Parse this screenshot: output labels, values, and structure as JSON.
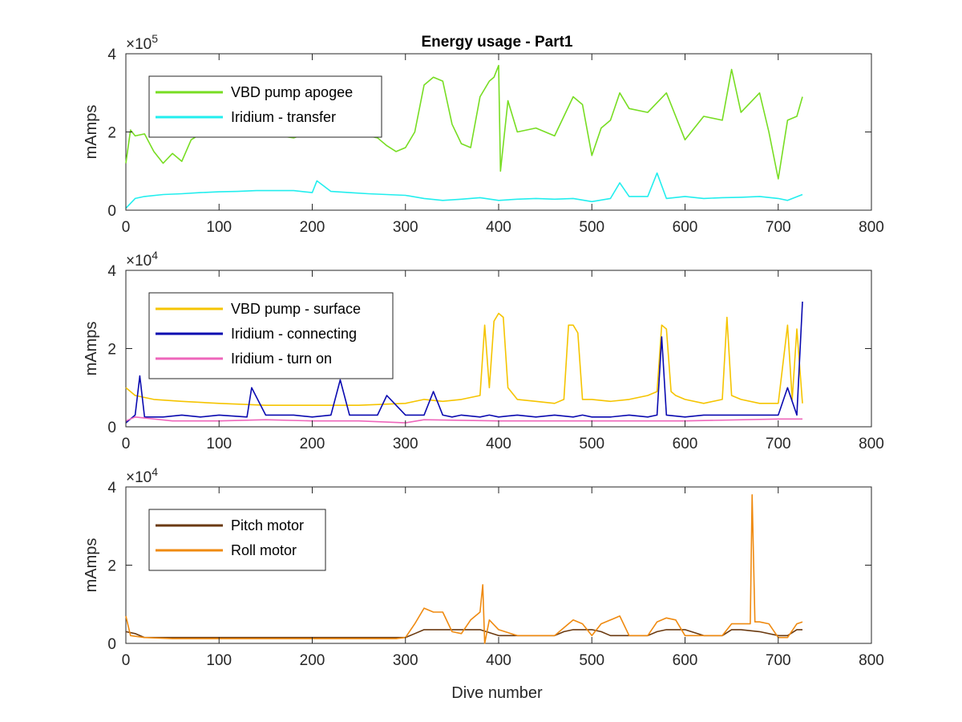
{
  "chart_data": {
    "title": "Energy usage - Part1",
    "xlabel": "Dive number",
    "xlim": [
      0,
      800
    ],
    "xticks": [
      0,
      100,
      200,
      300,
      400,
      500,
      600,
      700,
      800
    ],
    "panels": [
      {
        "type": "line",
        "ylabel": "mAmps",
        "exponent": "10",
        "exponent_power": "5",
        "ylim": [
          0,
          400000
        ],
        "yticks": [
          0,
          200000,
          400000
        ],
        "ytick_labels": [
          "0",
          "2",
          "4"
        ],
        "legend_position": "top-left",
        "series": [
          {
            "name": "VBD pump apogee",
            "color": "#77dd22",
            "x": [
              0,
              5,
              10,
              20,
              30,
              40,
              50,
              60,
              70,
              80,
              100,
              150,
              180,
              200,
              250,
              270,
              280,
              290,
              300,
              310,
              320,
              330,
              340,
              350,
              360,
              370,
              380,
              390,
              395,
              400,
              402,
              410,
              420,
              440,
              460,
              470,
              480,
              490,
              500,
              510,
              520,
              530,
              540,
              560,
              580,
              600,
              620,
              640,
              650,
              660,
              680,
              690,
              700,
              710,
              720,
              726
            ],
            "y": [
              120000,
              205000,
              190000,
              195000,
              150000,
              120000,
              145000,
              125000,
              180000,
              195000,
              190000,
              195000,
              185000,
              200000,
              195000,
              185000,
              165000,
              150000,
              160000,
              200000,
              320000,
              340000,
              330000,
              220000,
              170000,
              160000,
              290000,
              330000,
              340000,
              370000,
              100000,
              280000,
              200000,
              210000,
              190000,
              240000,
              290000,
              270000,
              140000,
              210000,
              230000,
              300000,
              260000,
              250000,
              300000,
              180000,
              240000,
              230000,
              360000,
              250000,
              300000,
              200000,
              80000,
              230000,
              240000,
              290000
            ]
          },
          {
            "name": "Iridium - transfer",
            "color": "#22eeee",
            "x": [
              0,
              10,
              20,
              40,
              60,
              80,
              100,
              120,
              140,
              160,
              180,
              200,
              205,
              220,
              240,
              260,
              280,
              300,
              320,
              340,
              360,
              380,
              400,
              420,
              440,
              460,
              480,
              500,
              520,
              530,
              540,
              560,
              570,
              580,
              600,
              620,
              640,
              660,
              680,
              700,
              710,
              726
            ],
            "y": [
              5000,
              30000,
              35000,
              40000,
              42000,
              45000,
              47000,
              48000,
              50000,
              50000,
              50000,
              45000,
              75000,
              48000,
              45000,
              42000,
              40000,
              38000,
              30000,
              25000,
              28000,
              32000,
              25000,
              28000,
              30000,
              28000,
              30000,
              22000,
              30000,
              70000,
              35000,
              35000,
              95000,
              30000,
              35000,
              30000,
              32000,
              33000,
              35000,
              30000,
              25000,
              40000
            ]
          }
        ]
      },
      {
        "type": "line",
        "ylabel": "mAmps",
        "exponent": "10",
        "exponent_power": "4",
        "ylim": [
          0,
          40000
        ],
        "yticks": [
          0,
          20000,
          40000
        ],
        "ytick_labels": [
          "0",
          "2",
          "4"
        ],
        "legend_position": "top-left",
        "series": [
          {
            "name": "VBD pump - surface",
            "color": "#f5c400",
            "x": [
              0,
              10,
              30,
              60,
              100,
              150,
              200,
              250,
              300,
              320,
              340,
              360,
              380,
              385,
              390,
              395,
              400,
              405,
              410,
              420,
              440,
              460,
              470,
              475,
              480,
              485,
              490,
              500,
              520,
              540,
              560,
              570,
              575,
              580,
              585,
              590,
              600,
              620,
              640,
              645,
              650,
              660,
              680,
              700,
              710,
              715,
              720,
              726
            ],
            "y": [
              10000,
              8000,
              7000,
              6500,
              6000,
              5500,
              5500,
              5500,
              6000,
              7000,
              6500,
              7000,
              8000,
              26000,
              10000,
              27000,
              29000,
              28000,
              10000,
              7000,
              6500,
              6000,
              7000,
              26000,
              26000,
              24000,
              7000,
              7000,
              6500,
              7000,
              8000,
              9000,
              26000,
              25000,
              9000,
              8000,
              7000,
              6000,
              7000,
              28000,
              8000,
              7000,
              6000,
              6000,
              26000,
              7000,
              25000,
              6000
            ]
          },
          {
            "name": "Iridium - connecting",
            "color": "#0a0ab0",
            "x": [
              0,
              10,
              15,
              20,
              40,
              60,
              80,
              100,
              130,
              135,
              150,
              180,
              200,
              220,
              230,
              240,
              270,
              280,
              300,
              320,
              330,
              340,
              350,
              360,
              380,
              390,
              400,
              420,
              440,
              460,
              480,
              490,
              500,
              520,
              540,
              560,
              570,
              575,
              580,
              600,
              620,
              640,
              660,
              680,
              700,
              710,
              720,
              726
            ],
            "y": [
              1000,
              3000,
              13000,
              2500,
              2500,
              3000,
              2500,
              3000,
              2500,
              10000,
              3000,
              3000,
              2500,
              3000,
              12000,
              3000,
              3000,
              8000,
              3000,
              3000,
              9000,
              3000,
              2500,
              3000,
              2500,
              3000,
              2500,
              3000,
              2500,
              3000,
              2500,
              3000,
              2500,
              2500,
              3000,
              2500,
              3000,
              23000,
              3000,
              2500,
              3000,
              3000,
              3000,
              3000,
              3000,
              10000,
              3000,
              32000
            ]
          },
          {
            "name": "Iridium - turn on",
            "color": "#ee66bb",
            "x": [
              0,
              10,
              50,
              100,
              150,
              200,
              250,
              300,
              320,
              400,
              500,
              600,
              700,
              726
            ],
            "y": [
              1500,
              2500,
              1500,
              1500,
              1800,
              1500,
              1500,
              1000,
              1800,
              1500,
              1500,
              1500,
              2000,
              2000
            ]
          }
        ]
      },
      {
        "type": "line",
        "ylabel": "mAmps",
        "exponent": "10",
        "exponent_power": "4",
        "ylim": [
          0,
          40000
        ],
        "yticks": [
          0,
          20000,
          40000
        ],
        "ytick_labels": [
          "0",
          "2",
          "4"
        ],
        "legend_position": "top-left",
        "series": [
          {
            "name": "Pitch motor",
            "color": "#6b3a10",
            "x": [
              0,
              10,
              20,
              50,
              100,
              150,
              200,
              250,
              300,
              310,
              320,
              340,
              360,
              380,
              400,
              420,
              440,
              460,
              470,
              480,
              500,
              510,
              520,
              540,
              560,
              570,
              580,
              600,
              620,
              640,
              650,
              660,
              680,
              700,
              710,
              720,
              726
            ],
            "y": [
              3000,
              2500,
              1500,
              1500,
              1500,
              1500,
              1500,
              1500,
              1500,
              2500,
              3500,
              3500,
              3500,
              3500,
              2000,
              2000,
              2000,
              2000,
              3000,
              3500,
              3500,
              3000,
              2000,
              2000,
              2000,
              3000,
              3500,
              3500,
              2000,
              2000,
              3500,
              3500,
              3000,
              2000,
              2000,
              3500,
              3500
            ]
          },
          {
            "name": "Roll motor",
            "color": "#ef8a10",
            "x": [
              0,
              5,
              20,
              50,
              100,
              150,
              200,
              250,
              290,
              300,
              310,
              320,
              330,
              340,
              350,
              360,
              370,
              380,
              383,
              385,
              390,
              400,
              420,
              440,
              460,
              470,
              480,
              490,
              500,
              510,
              520,
              530,
              540,
              560,
              570,
              580,
              590,
              600,
              620,
              640,
              650,
              660,
              670,
              672,
              675,
              680,
              690,
              700,
              710,
              720,
              726
            ],
            "y": [
              7000,
              2000,
              1500,
              1200,
              1200,
              1200,
              1200,
              1200,
              1200,
              1500,
              5000,
              9000,
              8000,
              8000,
              3000,
              2500,
              6000,
              8000,
              15000,
              0,
              6000,
              3500,
              2000,
              2000,
              2000,
              4000,
              6000,
              5000,
              2000,
              5000,
              6000,
              7000,
              2000,
              2000,
              5500,
              6500,
              6000,
              2000,
              2000,
              2000,
              5000,
              5000,
              5000,
              38000,
              5500,
              5500,
              5000,
              1500,
              1500,
              5000,
              5500
            ]
          }
        ]
      }
    ]
  }
}
